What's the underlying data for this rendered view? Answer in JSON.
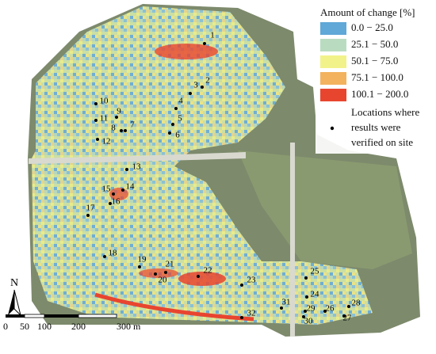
{
  "legend": {
    "title": "Amount of change [%]",
    "items": [
      {
        "label": "0.0 − 25.0",
        "color": "#5fa8d8"
      },
      {
        "label": "25.1 − 50.0",
        "color": "#b9dcc0"
      },
      {
        "label": "50.1 − 75.0",
        "color": "#f2f28a"
      },
      {
        "label": "75.1 − 100.0",
        "color": "#f3b25e"
      },
      {
        "label": "100.1 − 200.0",
        "color": "#e8452f"
      }
    ],
    "points_label": [
      "Locations where",
      "results were",
      "verified on site"
    ]
  },
  "north": "N",
  "scale_bar": [
    "0",
    "50",
    "100",
    "200",
    "300 m"
  ],
  "locations": [
    "1",
    "2",
    "3",
    "4",
    "5",
    "6",
    "7",
    "8",
    "9",
    "10",
    "11",
    "12",
    "13",
    "14",
    "15",
    "16",
    "17",
    "18",
    "19",
    "20",
    "21",
    "22",
    "23",
    "24",
    "25",
    "26",
    "27",
    "28",
    "29",
    "30",
    "31",
    "32"
  ]
}
